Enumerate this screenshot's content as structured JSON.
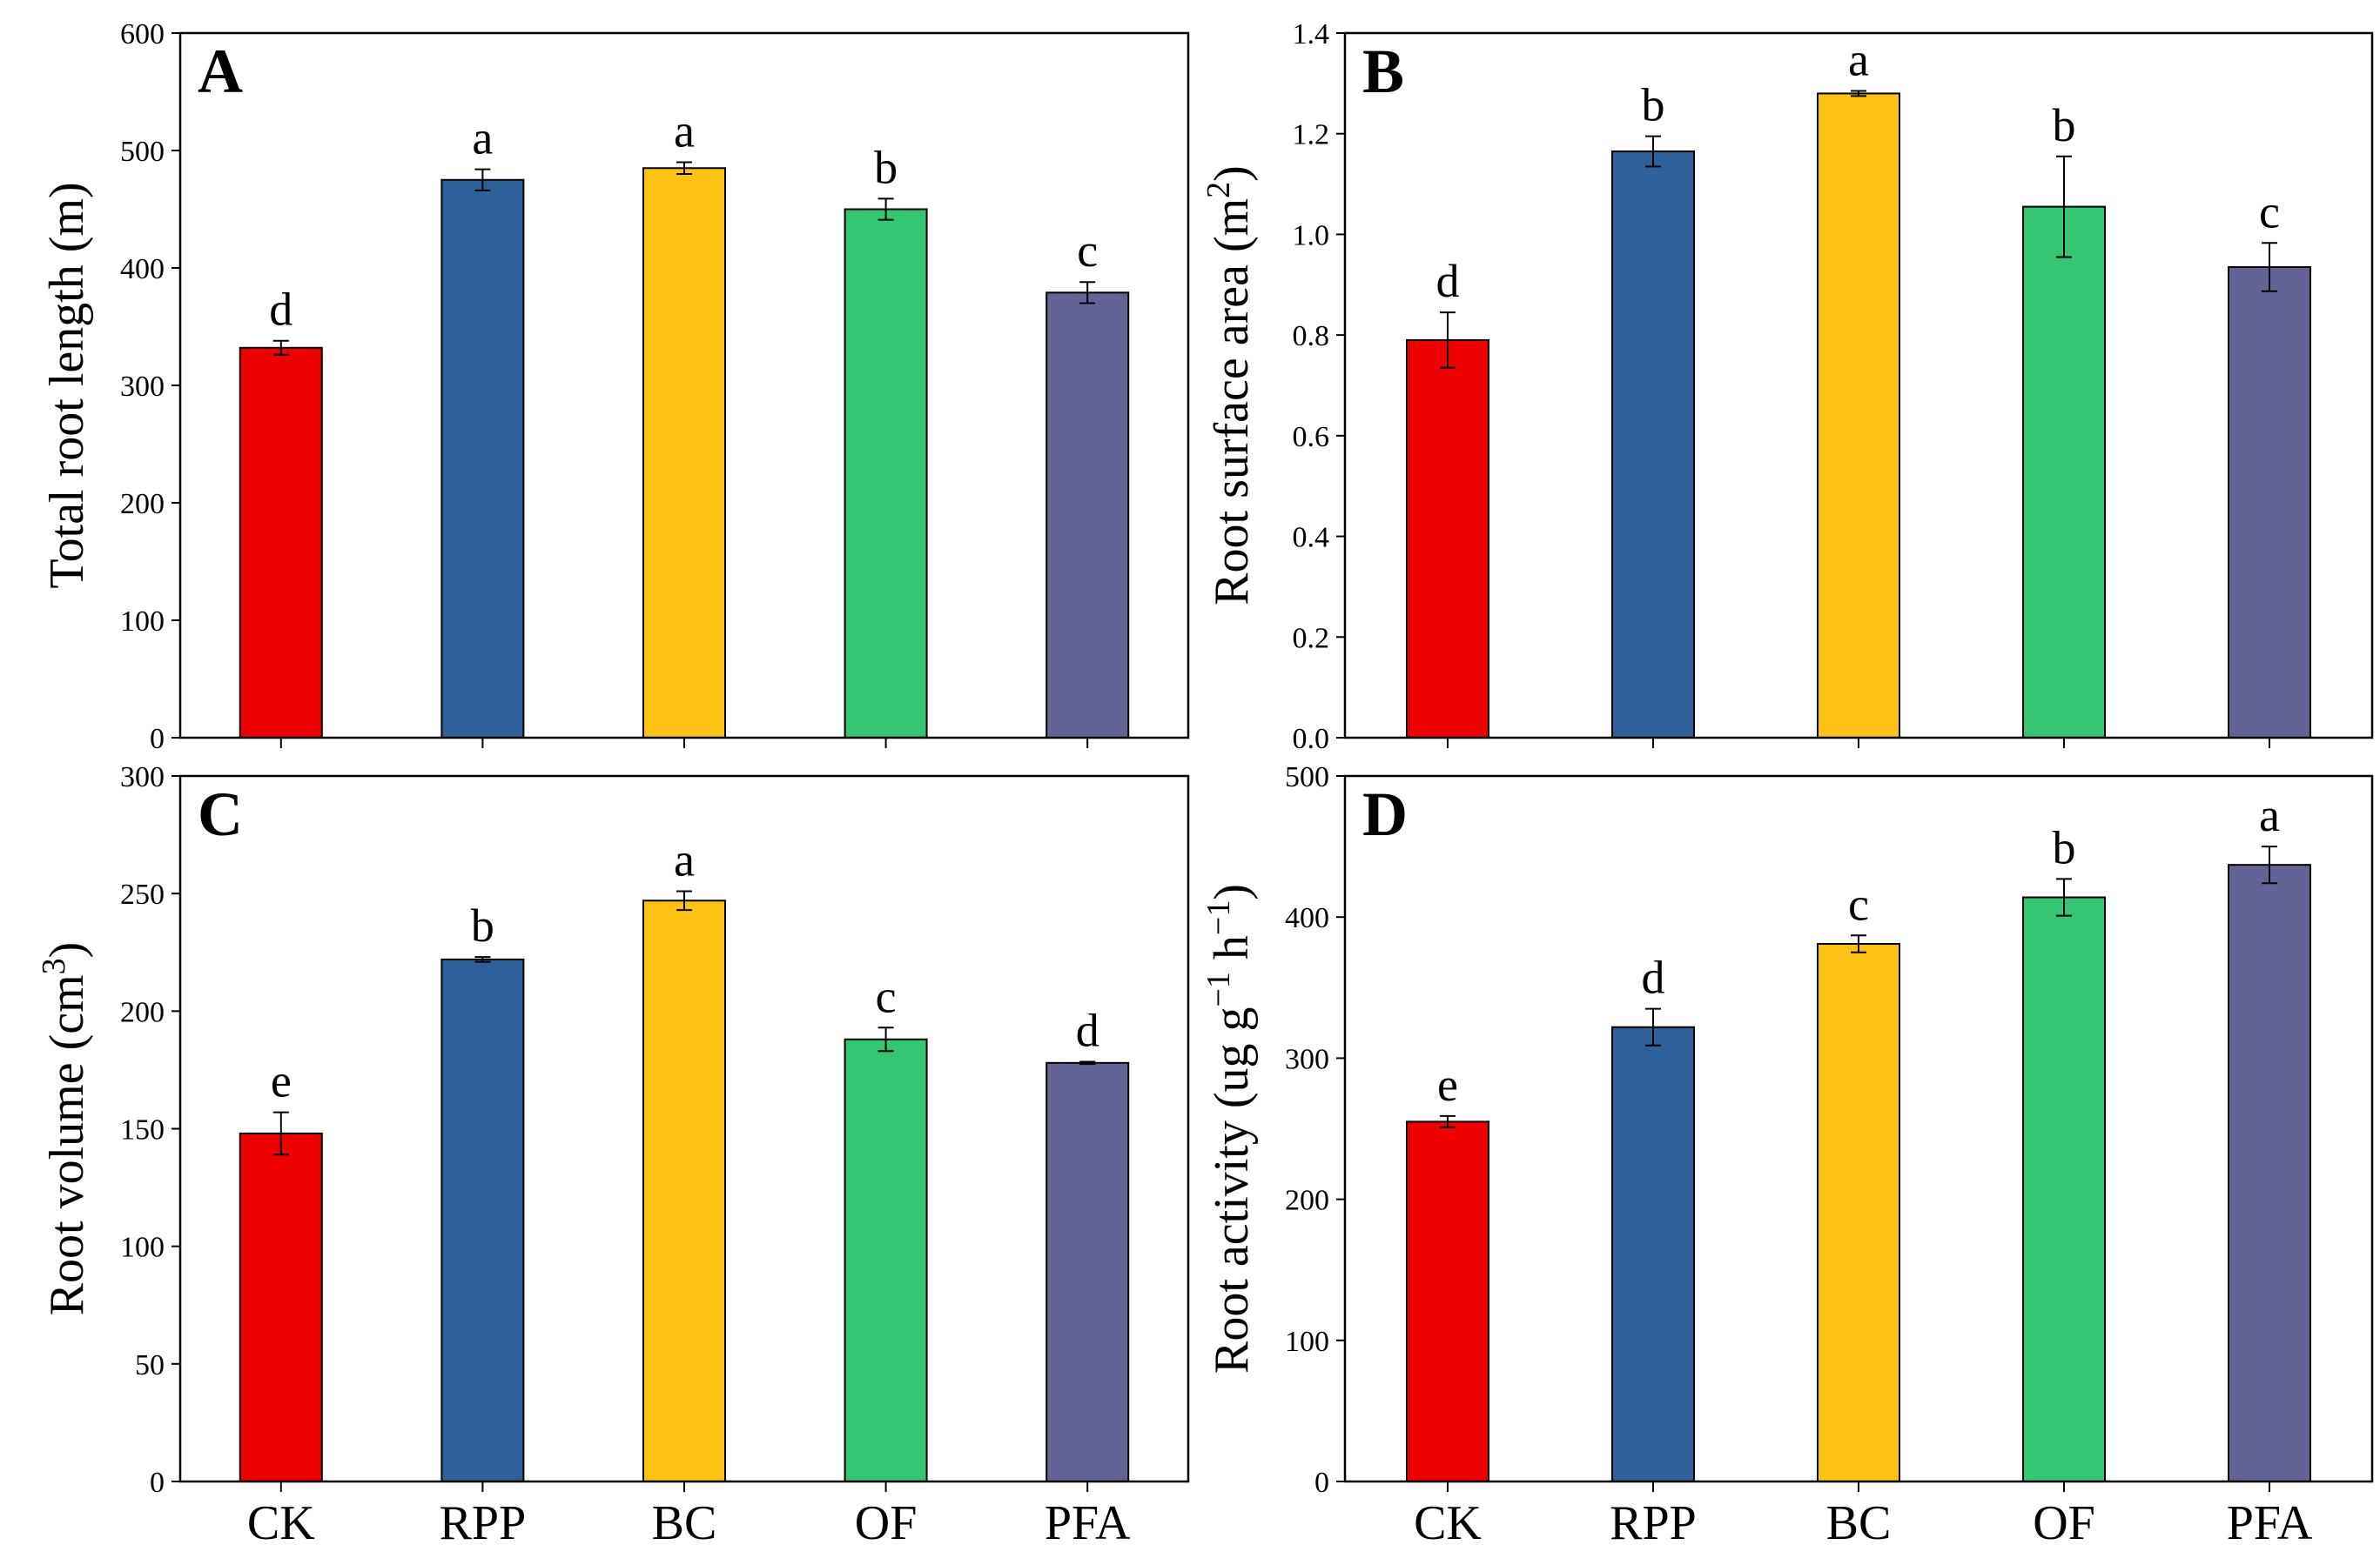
{
  "figure": {
    "colors": {
      "CK": "#ee0000",
      "RPP": "#2e6199",
      "BC": "#fdc214",
      "OF": "#36c570",
      "PFA": "#636398"
    }
  },
  "chart_data": [
    {
      "panel": "A",
      "type": "bar",
      "ylabel": "Total root length (m)",
      "ylim": [
        0,
        600
      ],
      "yticks": [
        "0",
        "100",
        "200",
        "300",
        "400",
        "500",
        "600"
      ],
      "show_xticklabels": false,
      "categories": [
        "CK",
        "RPP",
        "BC",
        "OF",
        "PFA"
      ],
      "values": [
        332,
        475,
        485,
        450,
        379
      ],
      "errors": [
        6,
        9,
        5,
        9,
        9
      ],
      "letters": [
        "d",
        "a",
        "a",
        "b",
        "c"
      ]
    },
    {
      "panel": "B",
      "type": "bar",
      "ylabel": "Root surface area (m²)",
      "ylim": [
        0,
        1.4
      ],
      "yticks": [
        "0.0",
        "0.2",
        "0.4",
        "0.6",
        "0.8",
        "1.0",
        "1.2",
        "1.4"
      ],
      "show_xticklabels": false,
      "categories": [
        "CK",
        "RPP",
        "BC",
        "OF",
        "PFA"
      ],
      "values": [
        0.79,
        1.165,
        1.28,
        1.055,
        0.935
      ],
      "errors": [
        0.055,
        0.03,
        0.005,
        0.1,
        0.048
      ],
      "letters": [
        "d",
        "b",
        "a",
        "b",
        "c"
      ]
    },
    {
      "panel": "C",
      "type": "bar",
      "ylabel": "Root volume (cm³)",
      "ylim": [
        0,
        300
      ],
      "yticks": [
        "0",
        "50",
        "100",
        "150",
        "200",
        "250",
        "300"
      ],
      "show_xticklabels": true,
      "categories": [
        "CK",
        "RPP",
        "BC",
        "OF",
        "PFA"
      ],
      "values": [
        148,
        222,
        247,
        188,
        178
      ],
      "errors": [
        9,
        1,
        4,
        5,
        0.5
      ],
      "letters": [
        "e",
        "b",
        "a",
        "c",
        "d"
      ]
    },
    {
      "panel": "D",
      "type": "bar",
      "ylabel": "Root activity (ug g⁻¹ h⁻¹)",
      "ylim": [
        0,
        500
      ],
      "yticks": [
        "0",
        "100",
        "200",
        "300",
        "400",
        "500"
      ],
      "show_xticklabels": true,
      "categories": [
        "CK",
        "RPP",
        "BC",
        "OF",
        "PFA"
      ],
      "values": [
        255,
        322,
        381,
        414,
        437
      ],
      "errors": [
        4,
        13,
        6,
        13,
        13
      ],
      "letters": [
        "e",
        "d",
        "c",
        "b",
        "a"
      ]
    }
  ]
}
